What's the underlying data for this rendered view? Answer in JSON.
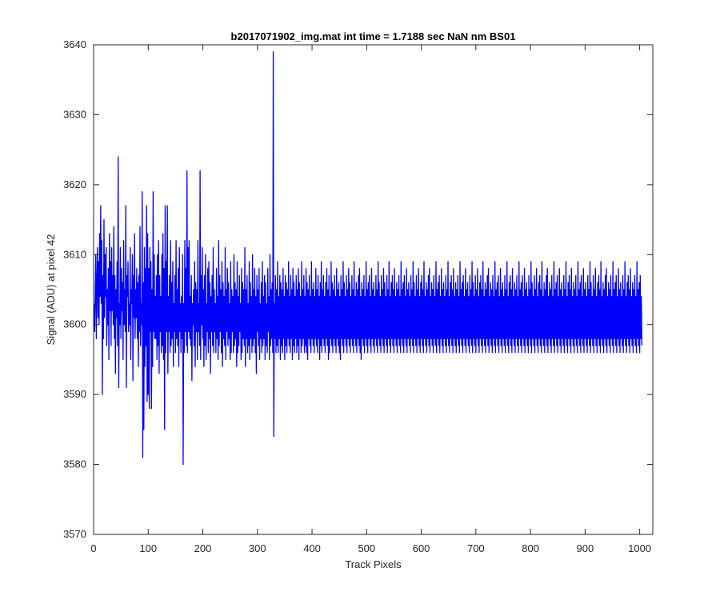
{
  "chart_data": {
    "type": "line",
    "title": "b2017071902_img.mat int time = 1.7188 sec  NaN nm BS01",
    "xlabel": "Track Pixels",
    "ylabel": "Signal (ADU) at pixel 42",
    "xlim": [
      0,
      1024
    ],
    "ylim": [
      3570,
      3640
    ],
    "xticks": [
      0,
      100,
      200,
      300,
      400,
      500,
      600,
      700,
      800,
      900,
      1000
    ],
    "yticks": [
      3570,
      3580,
      3590,
      3600,
      3610,
      3620,
      3630,
      3640
    ],
    "grid": false,
    "legend": "none",
    "series": [
      {
        "color": "#0000ff",
        "x_start": 1,
        "x_step": 1,
        "values": [
          3603,
          3599,
          3605,
          3610,
          3598,
          3606,
          3611,
          3601,
          3609,
          3600,
          3613,
          3604,
          3617,
          3603,
          3612,
          3590,
          3607,
          3598,
          3615,
          3601,
          3610,
          3604,
          3611,
          3597,
          3605,
          3600,
          3608,
          3595,
          3613,
          3602,
          3609,
          3597,
          3611,
          3602,
          3607,
          3600,
          3614,
          3598,
          3607,
          3593,
          3605,
          3601,
          3609,
          3597,
          3624,
          3591,
          3603,
          3600,
          3611,
          3598,
          3608,
          3602,
          3606,
          3595,
          3612,
          3600,
          3605,
          3599,
          3617,
          3591,
          3607,
          3604,
          3609,
          3599,
          3603,
          3600,
          3611,
          3595,
          3605,
          3603,
          3610,
          3592,
          3607,
          3601,
          3613,
          3598,
          3605,
          3601,
          3608,
          3598,
          3606,
          3594,
          3607,
          3599,
          3614,
          3597,
          3603,
          3600,
          3619,
          3581,
          3606,
          3585,
          3611,
          3594,
          3608,
          3597,
          3617,
          3589,
          3613,
          3590,
          3608,
          3588,
          3611,
          3599,
          3609,
          3588,
          3605,
          3594,
          3619,
          3599,
          3610,
          3598,
          3604,
          3598,
          3607,
          3595,
          3610,
          3597,
          3612,
          3593,
          3607,
          3599,
          3604,
          3596,
          3610,
          3597,
          3613,
          3595,
          3608,
          3585,
          3617,
          3596,
          3609,
          3599,
          3617,
          3593,
          3604,
          3599,
          3607,
          3596,
          3612,
          3597,
          3606,
          3598,
          3609,
          3594,
          3603,
          3599,
          3607,
          3596,
          3612,
          3598,
          3605,
          3597,
          3608,
          3594,
          3611,
          3599,
          3603,
          3596,
          3604,
          3598,
          3610,
          3580,
          3603,
          3596,
          3612,
          3599,
          3608,
          3597,
          3622,
          3596,
          3611,
          3599,
          3612,
          3598,
          3604,
          3597,
          3607,
          3592,
          3603,
          3600,
          3605,
          3597,
          3609,
          3594,
          3606,
          3599,
          3605,
          3595,
          3612,
          3599,
          3603,
          3597,
          3622,
          3595,
          3607,
          3600,
          3611,
          3598,
          3605,
          3594,
          3607,
          3597,
          3610,
          3595,
          3603,
          3599,
          3608,
          3596,
          3609,
          3598,
          3606,
          3593,
          3604,
          3599,
          3607,
          3597,
          3611,
          3596,
          3605,
          3599,
          3603,
          3596,
          3608,
          3598,
          3604,
          3595,
          3612,
          3597,
          3607,
          3599,
          3605,
          3596,
          3609,
          3594,
          3606,
          3598,
          3604,
          3597,
          3611,
          3595,
          3605,
          3599,
          3608,
          3597,
          3606,
          3598,
          3603,
          3595,
          3609,
          3596,
          3605,
          3599,
          3604,
          3596,
          3610,
          3597,
          3606,
          3598,
          3605,
          3594,
          3609,
          3596,
          3604,
          3597,
          3607,
          3599,
          3603,
          3595,
          3608,
          3596,
          3606,
          3598,
          3605,
          3597,
          3611,
          3594,
          3605,
          3598,
          3607,
          3596,
          3603,
          3597,
          3609,
          3595,
          3606,
          3598,
          3604,
          3596,
          3610,
          3597,
          3605,
          3598,
          3608,
          3596,
          3604,
          3593,
          3607,
          3599,
          3605,
          3597,
          3608,
          3595,
          3603,
          3598,
          3606,
          3596,
          3609,
          3597,
          3604,
          3598,
          3607,
          3595,
          3606,
          3597,
          3603,
          3596,
          3608,
          3599,
          3604,
          3595,
          3610,
          3597,
          3605,
          3598,
          3606,
          3596,
          3639,
          3584,
          3603,
          3598,
          3607,
          3596,
          3605,
          3597,
          3609,
          3596,
          3604,
          3598,
          3607,
          3595,
          3606,
          3597,
          3605,
          3596,
          3608,
          3598,
          3604,
          3595,
          3607,
          3597,
          3606,
          3596,
          3605,
          3598,
          3609,
          3597,
          3604,
          3596,
          3607,
          3598,
          3605,
          3595,
          3608,
          3597,
          3606,
          3596,
          3604,
          3598,
          3607,
          3596,
          3605,
          3597,
          3608,
          3595,
          3606,
          3598,
          3604,
          3596,
          3609,
          3597,
          3605,
          3598,
          3607,
          3596,
          3604,
          3597,
          3608,
          3596,
          3606,
          3595,
          3605,
          3598,
          3607,
          3597,
          3604,
          3596,
          3609,
          3598,
          3605,
          3597,
          3606,
          3596,
          3604,
          3598,
          3608,
          3597,
          3605,
          3596,
          3607,
          3598,
          3604,
          3595,
          3606,
          3597,
          3609,
          3596,
          3605,
          3598,
          3607,
          3597,
          3604,
          3596,
          3606,
          3598,
          3608,
          3597,
          3605,
          3595,
          3607,
          3596,
          3604,
          3598,
          3609,
          3597,
          3606,
          3596,
          3605,
          3598,
          3607,
          3597,
          3604,
          3596,
          3608,
          3598,
          3605,
          3597,
          3606,
          3596,
          3604,
          3595,
          3607,
          3598,
          3605,
          3597,
          3609,
          3596,
          3606,
          3598,
          3604,
          3597,
          3607,
          3596,
          3605,
          3598,
          3608,
          3597,
          3606,
          3596,
          3604,
          3598,
          3607,
          3597,
          3605,
          3596,
          3609,
          3598,
          3604,
          3597,
          3606,
          3596,
          3605,
          3598,
          3607,
          3597,
          3608,
          3596,
          3604,
          3595,
          3606,
          3598,
          3605,
          3597,
          3607,
          3596,
          3604,
          3598,
          3609,
          3597,
          3605,
          3596,
          3606,
          3598,
          3607,
          3597,
          3604,
          3596,
          3608,
          3598,
          3605,
          3597,
          3606,
          3596,
          3604,
          3598,
          3607,
          3597,
          3605,
          3596,
          3609,
          3598,
          3606,
          3597,
          3604,
          3596,
          3607,
          3598,
          3605,
          3597,
          3608,
          3596,
          3606,
          3598,
          3604,
          3597,
          3607,
          3596,
          3605,
          3598,
          3609,
          3597,
          3604,
          3596,
          3606,
          3598,
          3607,
          3597,
          3605,
          3596,
          3608,
          3598,
          3604,
          3597,
          3606,
          3596,
          3605,
          3598,
          3607,
          3597,
          3604,
          3596,
          3609,
          3598,
          3605,
          3597,
          3606,
          3596,
          3607,
          3598,
          3604,
          3597,
          3608,
          3596,
          3605,
          3598,
          3606,
          3597,
          3604,
          3596,
          3607,
          3598,
          3605,
          3597,
          3609,
          3596,
          3606,
          3598,
          3604,
          3597,
          3607,
          3596,
          3605,
          3598,
          3608,
          3597,
          3604,
          3596,
          3606,
          3598,
          3607,
          3597,
          3605,
          3596,
          3609,
          3598,
          3604,
          3597,
          3606,
          3596,
          3605,
          3598,
          3607,
          3597,
          3608,
          3596,
          3604,
          3598,
          3606,
          3597,
          3605,
          3596,
          3607,
          3598,
          3604,
          3597,
          3609,
          3596,
          3605,
          3598,
          3606,
          3597,
          3607,
          3596,
          3604,
          3598,
          3608,
          3597,
          3605,
          3596,
          3606,
          3598,
          3604,
          3597,
          3607,
          3596,
          3605,
          3598,
          3609,
          3597,
          3604,
          3596,
          3606,
          3598,
          3607,
          3597,
          3605,
          3596,
          3608,
          3598,
          3604,
          3597,
          3606,
          3596,
          3605,
          3598,
          3607,
          3597,
          3604,
          3596,
          3609,
          3598,
          3605,
          3597,
          3606,
          3596,
          3607,
          3598,
          3604,
          3597,
          3608,
          3596,
          3605,
          3598,
          3606,
          3597,
          3604,
          3596,
          3607,
          3598,
          3605,
          3597,
          3609,
          3596,
          3606,
          3598,
          3604,
          3597,
          3607,
          3596,
          3605,
          3598,
          3608,
          3597,
          3604,
          3596,
          3606,
          3598,
          3607,
          3597,
          3605,
          3596,
          3609,
          3598,
          3604,
          3597,
          3606,
          3596,
          3605,
          3598,
          3607,
          3597,
          3608,
          3596,
          3604,
          3598,
          3606,
          3597,
          3605,
          3596,
          3607,
          3598,
          3604,
          3597,
          3609,
          3596,
          3605,
          3598,
          3606,
          3597,
          3607,
          3596,
          3604,
          3598,
          3608,
          3597,
          3605,
          3596,
          3606,
          3598,
          3604,
          3597,
          3607,
          3596,
          3605,
          3598,
          3609,
          3597,
          3604,
          3596,
          3606,
          3598,
          3607,
          3597,
          3605,
          3596,
          3608,
          3598,
          3604,
          3597,
          3606,
          3596,
          3605,
          3598,
          3607,
          3597,
          3604,
          3596,
          3609,
          3598,
          3605,
          3597,
          3606,
          3596,
          3607,
          3598,
          3604,
          3597,
          3608,
          3596,
          3605,
          3598,
          3606,
          3597,
          3604,
          3596,
          3607,
          3598,
          3605,
          3597,
          3609,
          3596,
          3606,
          3598,
          3604,
          3597,
          3607,
          3596,
          3605,
          3598,
          3608,
          3597,
          3604,
          3596,
          3606,
          3598,
          3607,
          3597,
          3605,
          3596,
          3609,
          3598,
          3604,
          3597,
          3606,
          3596,
          3605,
          3598,
          3607,
          3597,
          3608,
          3596,
          3604,
          3598,
          3606,
          3597,
          3605,
          3596,
          3607,
          3598,
          3604,
          3597,
          3609,
          3596,
          3605,
          3598,
          3606,
          3597,
          3607,
          3596,
          3604,
          3598,
          3608,
          3597,
          3605,
          3596,
          3606,
          3598,
          3604,
          3597,
          3607,
          3596,
          3605,
          3598,
          3609,
          3597,
          3604,
          3596,
          3606,
          3598,
          3607,
          3597,
          3605,
          3596,
          3608,
          3598,
          3604,
          3597,
          3606,
          3596,
          3605,
          3598,
          3607,
          3597,
          3604,
          3596,
          3609,
          3598,
          3605,
          3597,
          3606,
          3596,
          3607,
          3598,
          3604,
          3597,
          3608,
          3596,
          3605,
          3598,
          3606,
          3597,
          3604,
          3596,
          3607,
          3598,
          3605,
          3597,
          3609,
          3596,
          3606,
          3598,
          3604,
          3597,
          3607,
          3596,
          3605,
          3598,
          3608,
          3597,
          3604,
          3596,
          3606,
          3598,
          3607,
          3597,
          3605,
          3596,
          3609,
          3598,
          3604,
          3597,
          3606,
          3596,
          3605,
          3598,
          3607,
          3597,
          3608,
          3596,
          3604,
          3598,
          3606,
          3597,
          3605,
          3596,
          3607,
          3598,
          3604,
          3597,
          3609,
          3596,
          3605,
          3598,
          3606,
          3597,
          3607,
          3596,
          3604,
          3598,
          3608,
          3597,
          3605,
          3596,
          3606,
          3598,
          3604,
          3597,
          3607,
          3596,
          3605,
          3598,
          3609,
          3597,
          3604,
          3596,
          3606,
          3598,
          3607,
          3597,
          3605,
          3596,
          3608,
          3598,
          3604,
          3597,
          3606,
          3596,
          3605,
          3598,
          3607,
          3597,
          3604,
          3596,
          3609,
          3598,
          3605,
          3597,
          3606,
          3596,
          3607,
          3598,
          3604,
          3597
        ]
      }
    ]
  }
}
